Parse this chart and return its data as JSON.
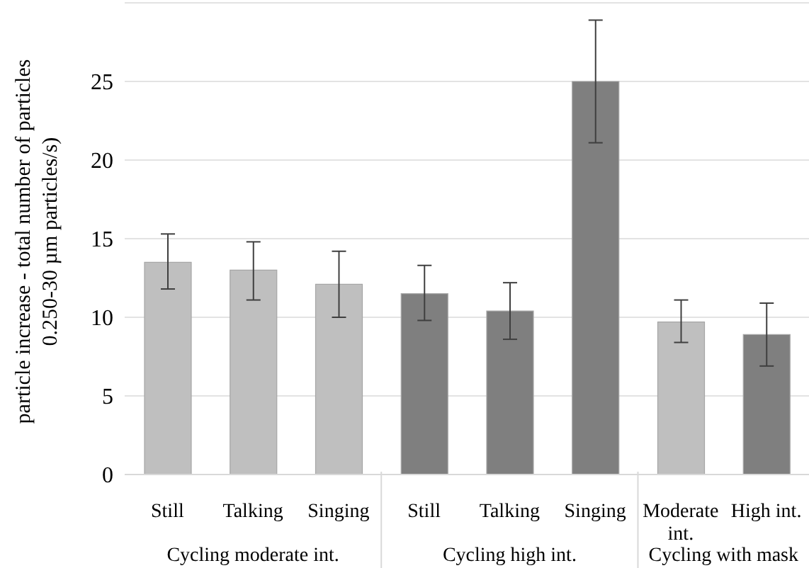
{
  "chart_data": {
    "type": "bar",
    "ylabel": "particle increase - total number of particles 0.250-30 µm particles/s)",
    "categories": [
      "Still",
      "Talking",
      "Singing",
      "Still",
      "Talking",
      "Singing",
      "Moderate int.",
      "High int."
    ],
    "values": [
      13.5,
      13.0,
      12.1,
      11.5,
      10.4,
      25.0,
      9.7,
      8.9
    ],
    "colors": [
      "#bfbfbf",
      "#bfbfbf",
      "#bfbfbf",
      "#7f7f7f",
      "#7f7f7f",
      "#7f7f7f",
      "#bfbfbf",
      "#7f7f7f"
    ],
    "errors": [
      [
        11.8,
        15.3
      ],
      [
        11.1,
        14.8
      ],
      [
        10.0,
        14.2
      ],
      [
        9.8,
        13.3
      ],
      [
        8.6,
        12.2
      ],
      [
        21.1,
        28.9
      ],
      [
        8.4,
        11.1
      ],
      [
        6.9,
        10.9
      ]
    ],
    "annotations": [
      "Cycling moderate int.",
      "Cycling high int.",
      "Cycling with mask"
    ],
    "ylim": [
      0,
      30
    ],
    "yticks": [
      0,
      5,
      10,
      15,
      20,
      25
    ],
    "grid": "y"
  }
}
